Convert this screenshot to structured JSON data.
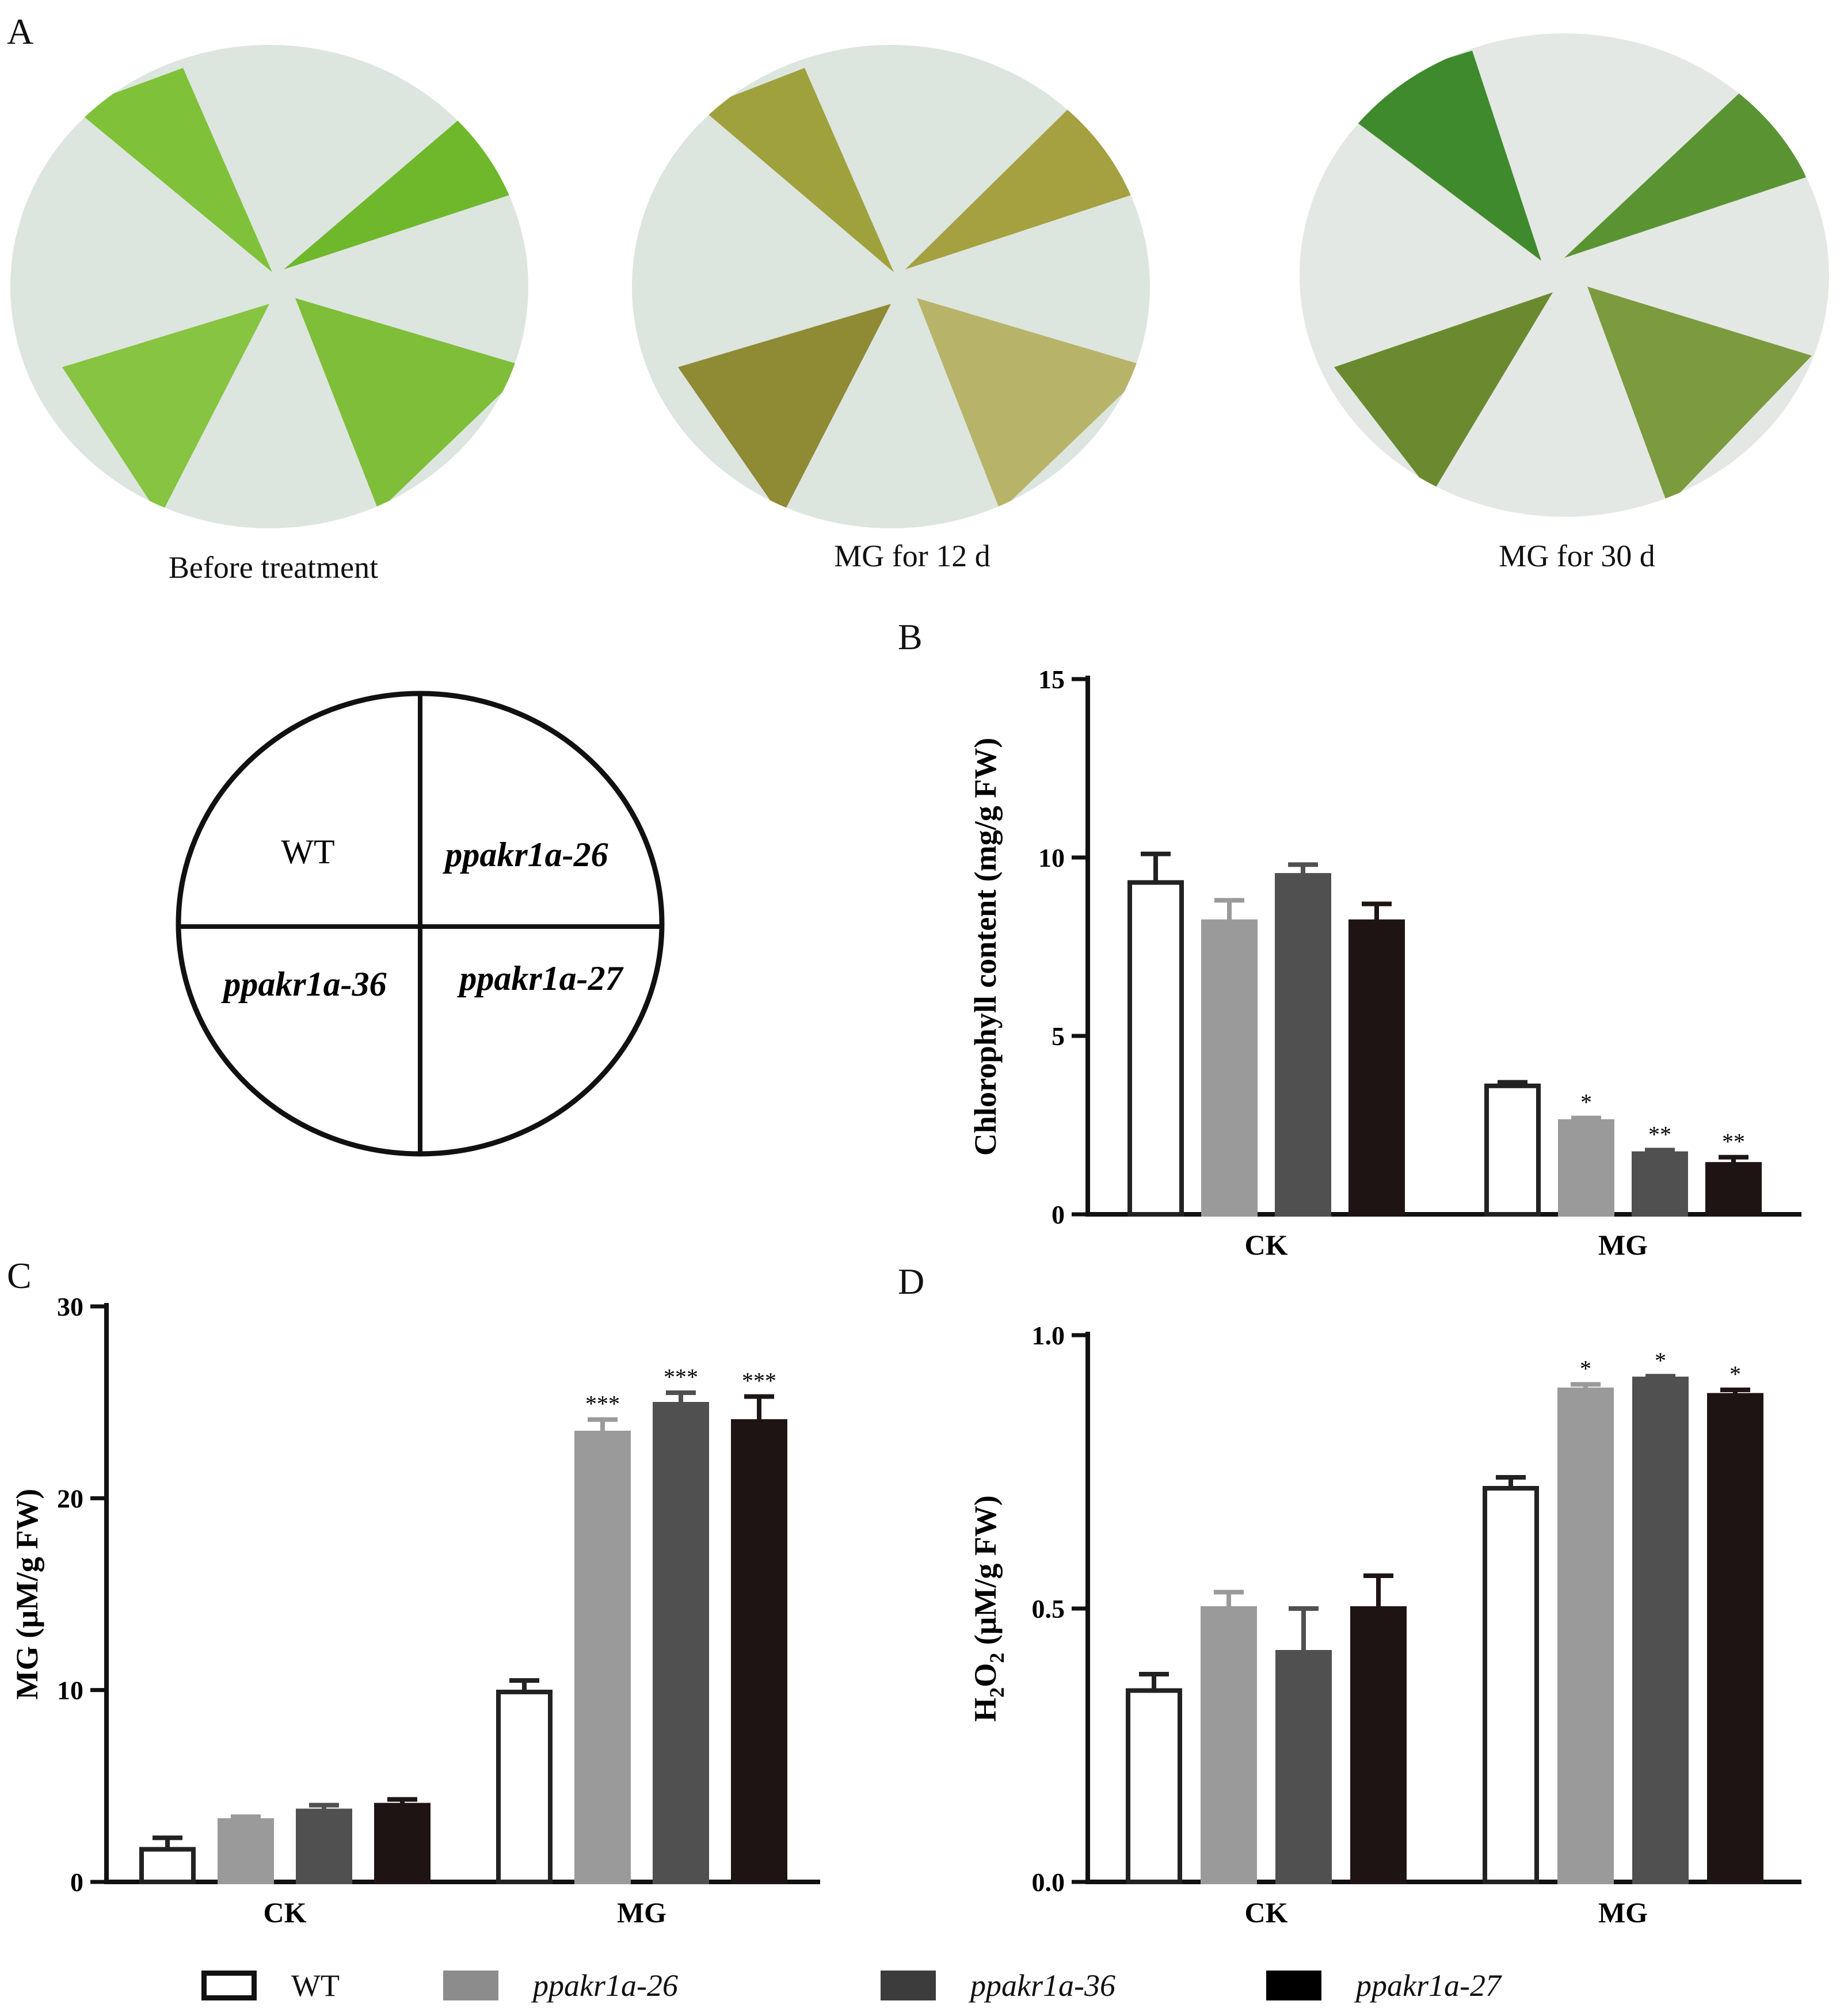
{
  "figure": {
    "panel_a": {
      "letter": "A",
      "captions": [
        "Before treatment",
        "MG for 12 d",
        "MG for 30 d"
      ],
      "layout_quadrants": {
        "top_left": "WT",
        "top_right": "ppakr1a-26",
        "bottom_left": "ppakr1a-36",
        "bottom_right": "ppakr1a-27"
      }
    },
    "panel_b": {
      "letter": "B"
    },
    "panel_c": {
      "letter": "C"
    },
    "panel_d": {
      "letter": "D"
    },
    "legend": [
      {
        "label": "WT",
        "color": "#ffffff",
        "italic": false
      },
      {
        "label": "ppakr1a-26",
        "color": "#9a9a9a",
        "italic": true
      },
      {
        "label": "ppakr1a-36",
        "color": "#505050",
        "italic": true
      },
      {
        "label": "ppakr1a-27",
        "color": "#1e1414",
        "italic": true
      }
    ],
    "series_colors": {
      "WT": "#ffffff",
      "ppakr1a-26": "#9a9a9a",
      "ppakr1a-36": "#505050",
      "ppakr1a-27": "#1e1414"
    },
    "photo_colors": {
      "before": "#7fc23a",
      "mg12": "#a9a442",
      "mg30": "#5f8f2a",
      "plate_bg": "#dde5df"
    }
  },
  "chart_data": [
    {
      "panel": "B",
      "type": "bar",
      "categories": [
        "CK",
        "MG"
      ],
      "ylabel": "Chlorophyll content (mg/g FW)",
      "ylim": [
        0,
        15
      ],
      "yticks": [
        "0",
        "5",
        "10",
        "15"
      ],
      "series": [
        {
          "name": "WT",
          "values": [
            9.3,
            3.6
          ],
          "errors": [
            0.8,
            0.1
          ],
          "sig": [
            "",
            ""
          ]
        },
        {
          "name": "ppakr1a-26",
          "values": [
            8.2,
            2.6
          ],
          "errors": [
            0.6,
            0.1
          ],
          "sig": [
            "",
            "*"
          ]
        },
        {
          "name": "ppakr1a-36",
          "values": [
            9.5,
            1.7
          ],
          "errors": [
            0.3,
            0.1
          ],
          "sig": [
            "",
            "**"
          ]
        },
        {
          "name": "ppakr1a-27",
          "values": [
            8.2,
            1.4
          ],
          "errors": [
            0.5,
            0.2
          ],
          "sig": [
            "",
            "**"
          ]
        }
      ]
    },
    {
      "panel": "C",
      "type": "bar",
      "categories": [
        "CK",
        "MG"
      ],
      "ylabel": "MG (μM/g FW)",
      "ylim": [
        0,
        30
      ],
      "yticks": [
        "0",
        "10",
        "20",
        "30"
      ],
      "series": [
        {
          "name": "WT",
          "values": [
            1.7,
            9.9
          ],
          "errors": [
            0.6,
            0.6
          ],
          "sig": [
            "",
            ""
          ]
        },
        {
          "name": "ppakr1a-26",
          "values": [
            3.2,
            23.4
          ],
          "errors": [
            0.2,
            0.7
          ],
          "sig": [
            "",
            "***"
          ]
        },
        {
          "name": "ppakr1a-36",
          "values": [
            3.7,
            24.9
          ],
          "errors": [
            0.3,
            0.6
          ],
          "sig": [
            "",
            "***"
          ]
        },
        {
          "name": "ppakr1a-27",
          "values": [
            4.0,
            24.0
          ],
          "errors": [
            0.3,
            1.3
          ],
          "sig": [
            "",
            "***"
          ]
        }
      ]
    },
    {
      "panel": "D",
      "type": "bar",
      "categories": [
        "CK",
        "MG"
      ],
      "ylabel": "H2O2 (μM/g FW)",
      "ylim": [
        0,
        1.0
      ],
      "yticks": [
        "0.0",
        "0.5",
        "1.0"
      ],
      "series": [
        {
          "name": "WT",
          "values": [
            0.35,
            0.72
          ],
          "errors": [
            0.03,
            0.02
          ],
          "sig": [
            "",
            ""
          ]
        },
        {
          "name": "ppakr1a-26",
          "values": [
            0.5,
            0.9
          ],
          "errors": [
            0.03,
            0.01
          ],
          "sig": [
            "",
            "*"
          ]
        },
        {
          "name": "ppakr1a-36",
          "values": [
            0.42,
            0.92
          ],
          "errors": [
            0.08,
            0.005
          ],
          "sig": [
            "",
            "*"
          ]
        },
        {
          "name": "ppakr1a-27",
          "values": [
            0.5,
            0.89
          ],
          "errors": [
            0.06,
            0.01
          ],
          "sig": [
            "",
            "*"
          ]
        }
      ]
    }
  ]
}
